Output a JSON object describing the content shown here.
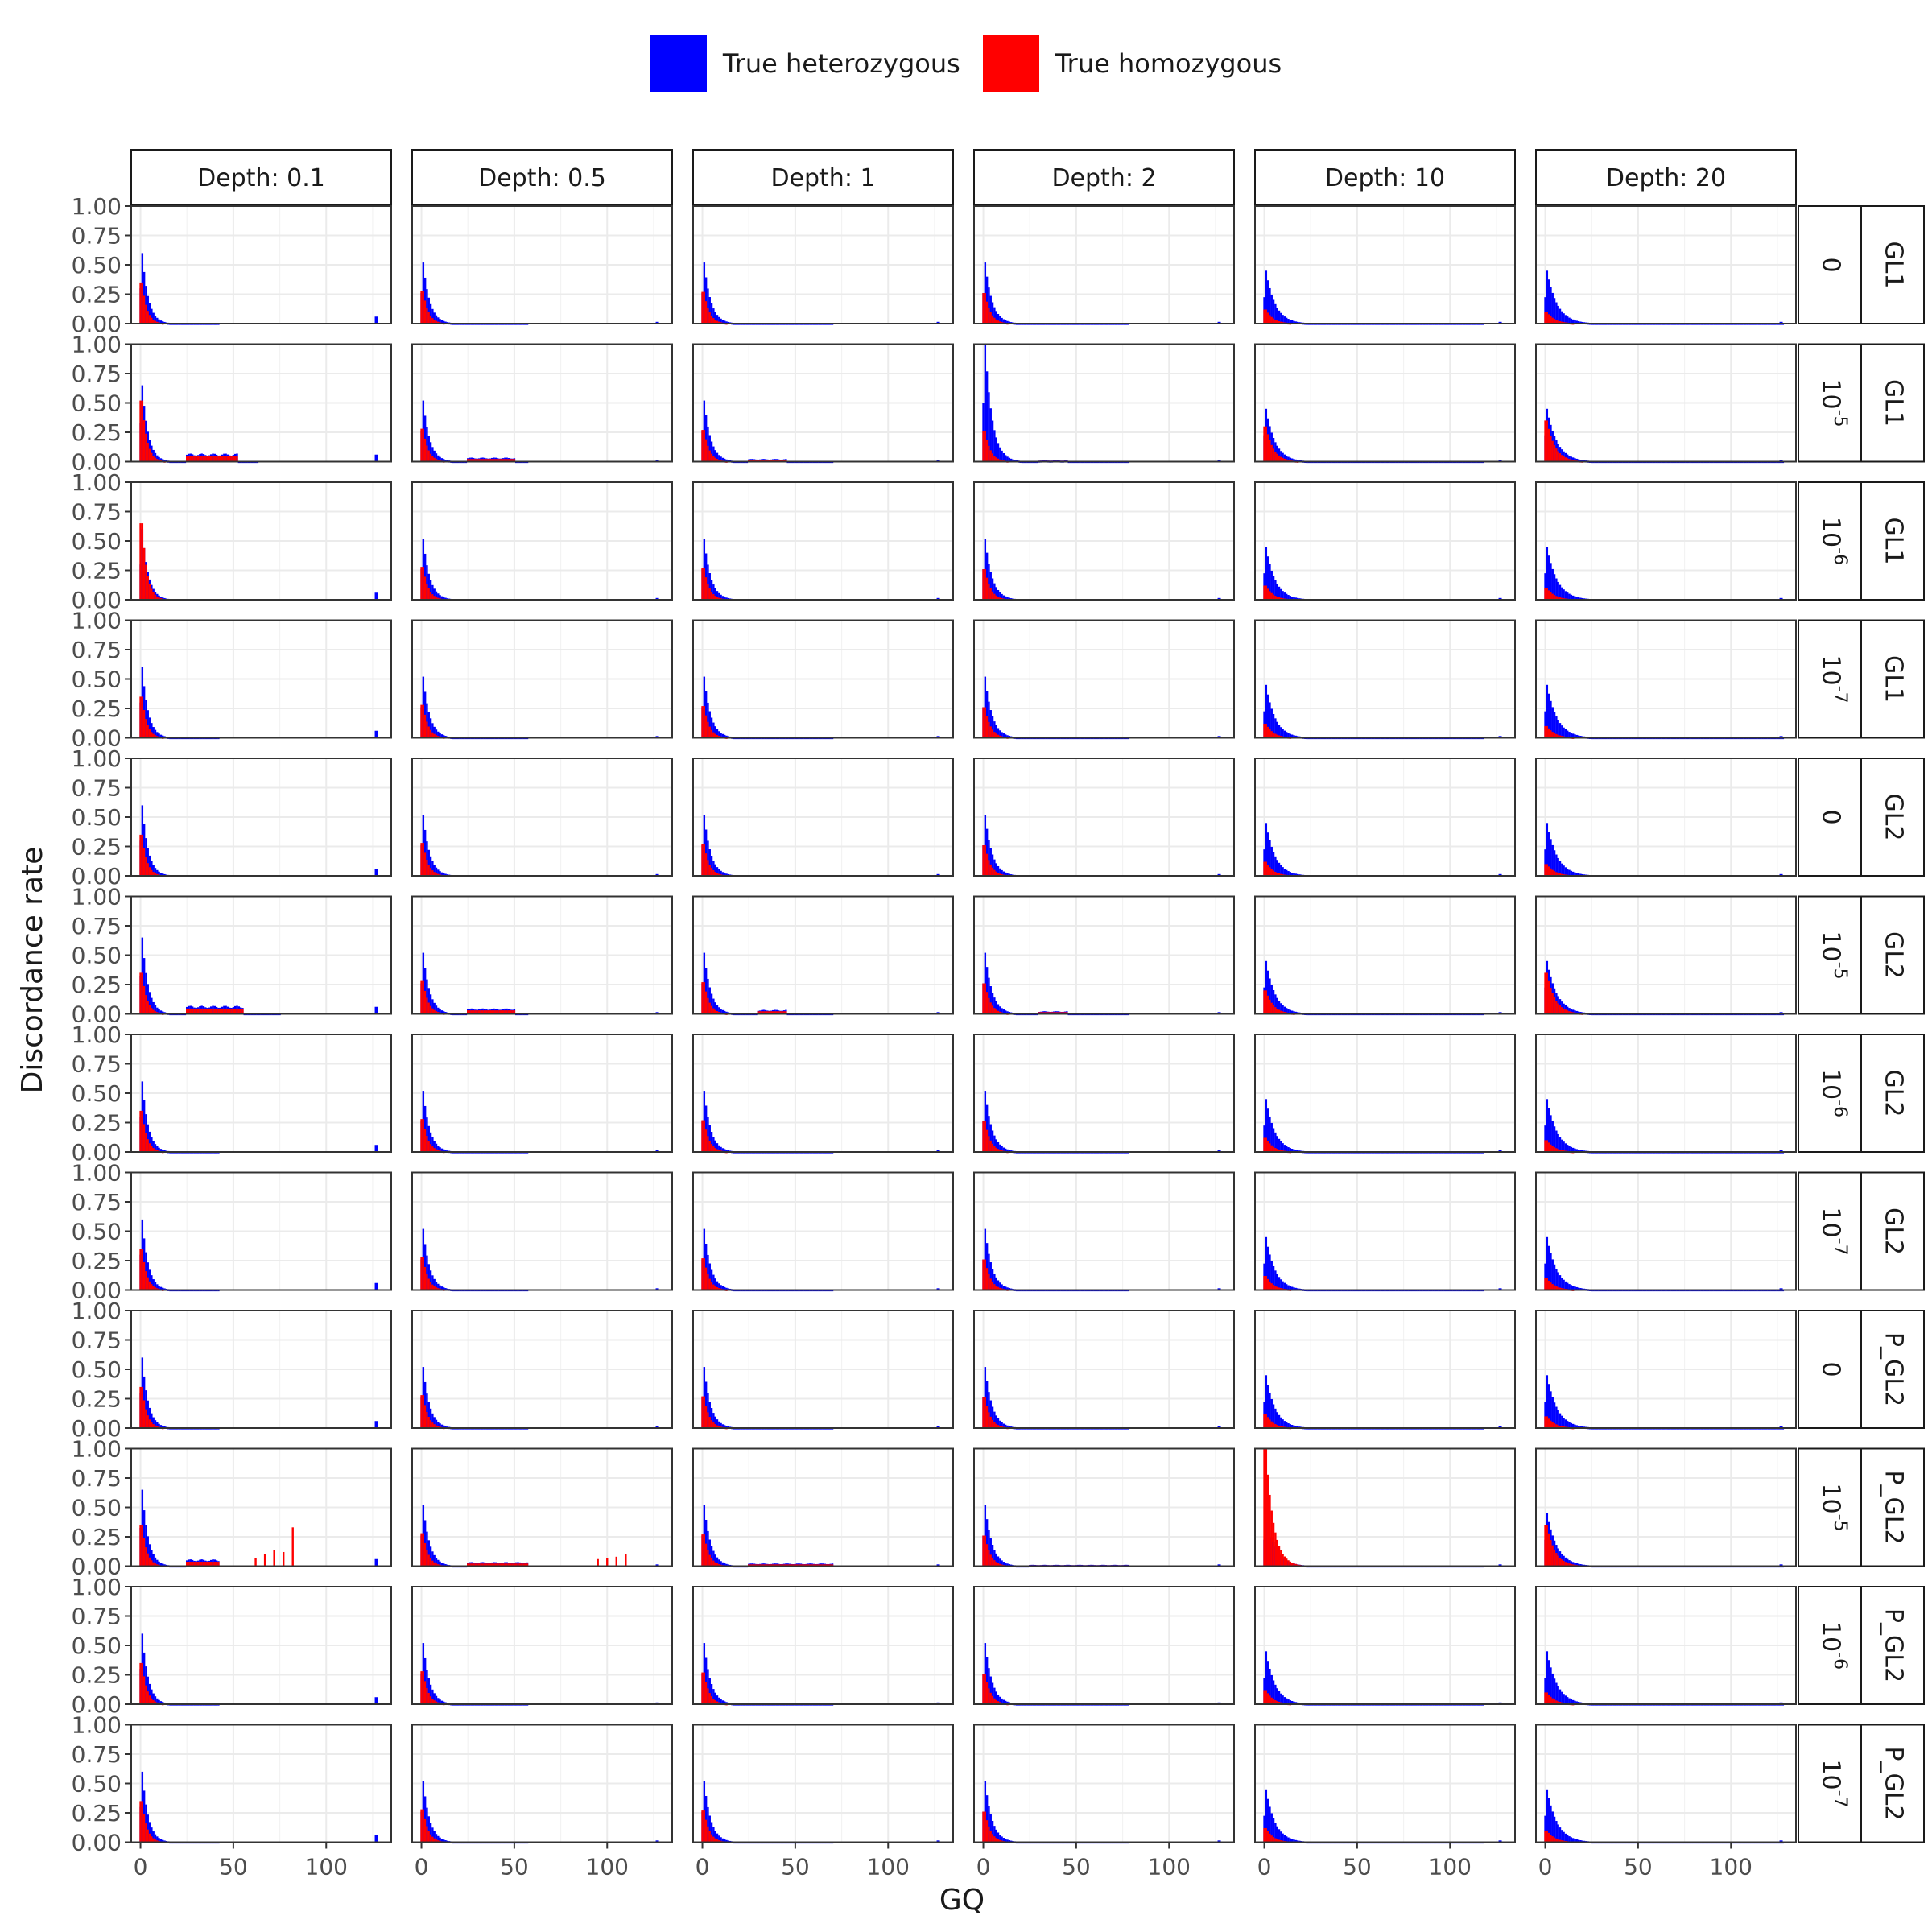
{
  "legend": {
    "items": [
      {
        "label": "True heterozygous",
        "color": "#0000ff"
      },
      {
        "label": "True homozygous",
        "color": "#ff0000"
      }
    ]
  },
  "chart_data": {
    "type": "bar",
    "xlabel": "GQ",
    "ylabel": "Discordance rate",
    "xlim": [
      -5,
      135
    ],
    "ylim": [
      0,
      1
    ],
    "x_ticks": [
      0,
      50,
      100
    ],
    "y_ticks": [
      "0.00",
      "0.25",
      "0.50",
      "0.75",
      "1.00"
    ],
    "grid": true,
    "legend_position": "top",
    "series_colors": {
      "True heterozygous": "#0000ff",
      "True homozygous": "#ff0000"
    },
    "columns": [
      "Depth: 0.1",
      "Depth: 0.5",
      "Depth: 1",
      "Depth: 2",
      "Depth: 10",
      "Depth: 20"
    ],
    "rows": [
      {
        "threshold": "0",
        "exp": "",
        "model": "GL1"
      },
      {
        "threshold": "10",
        "exp": "-5",
        "model": "GL1"
      },
      {
        "threshold": "10",
        "exp": "-6",
        "model": "GL1"
      },
      {
        "threshold": "10",
        "exp": "-7",
        "model": "GL1"
      },
      {
        "threshold": "0",
        "exp": "",
        "model": "GL2"
      },
      {
        "threshold": "10",
        "exp": "-5",
        "model": "GL2"
      },
      {
        "threshold": "10",
        "exp": "-6",
        "model": "GL2"
      },
      {
        "threshold": "10",
        "exp": "-7",
        "model": "GL2"
      },
      {
        "threshold": "0",
        "exp": "",
        "model": "P_GL2"
      },
      {
        "threshold": "10",
        "exp": "-5",
        "model": "P_GL2"
      },
      {
        "threshold": "10",
        "exp": "-6",
        "model": "P_GL2"
      },
      {
        "threshold": "10",
        "exp": "-7",
        "model": "P_GL2"
      }
    ],
    "column_profiles": [
      {
        "het_peak": 0.6,
        "hom_peak": 0.35,
        "decay": 3.2,
        "max_gq": 42
      },
      {
        "het_peak": 0.52,
        "hom_peak": 0.28,
        "decay": 3.5,
        "max_gq": 57
      },
      {
        "het_peak": 0.52,
        "hom_peak": 0.27,
        "decay": 3.6,
        "max_gq": 70
      },
      {
        "het_peak": 0.52,
        "hom_peak": 0.26,
        "decay": 3.8,
        "max_gq": 78
      },
      {
        "het_peak": 0.45,
        "hom_peak": 0.12,
        "decay": 5.0,
        "max_gq": 118
      },
      {
        "het_peak": 0.45,
        "hom_peak": 0.1,
        "decay": 5.5,
        "max_gq": 128
      }
    ],
    "panel_overrides": [
      {
        "row": 1,
        "col": 0,
        "het_peak": 0.65,
        "hom_peak": 0.52,
        "plateau": [
          25,
          52,
          0.06
        ],
        "max_gq": 63
      },
      {
        "row": 1,
        "col": 1,
        "plateau": [
          25,
          50,
          0.03
        ]
      },
      {
        "row": 1,
        "col": 2,
        "plateau": [
          25,
          45,
          0.02
        ]
      },
      {
        "row": 1,
        "col": 3,
        "het_peak": 1.0,
        "plateau": [
          30,
          45,
          0.01
        ]
      },
      {
        "row": 1,
        "col": 4,
        "hom_peak": 0.3
      },
      {
        "row": 1,
        "col": 5,
        "hom_peak": 0.35
      },
      {
        "row": 2,
        "col": 0,
        "hom_peak": 0.65
      },
      {
        "row": 5,
        "col": 0,
        "het_peak": 0.65,
        "plateau": [
          25,
          55,
          0.06
        ],
        "max_gq": 75
      },
      {
        "row": 5,
        "col": 1,
        "plateau": [
          25,
          50,
          0.04
        ]
      },
      {
        "row": 5,
        "col": 2,
        "plateau": [
          30,
          45,
          0.03
        ]
      },
      {
        "row": 5,
        "col": 3,
        "plateau": [
          30,
          45,
          0.02
        ]
      },
      {
        "row": 5,
        "col": 4,
        "hom_peak": 0.2
      },
      {
        "row": 5,
        "col": 5,
        "hom_peak": 0.35
      },
      {
        "row": 9,
        "col": 0,
        "het_peak": 0.65,
        "plateau": [
          25,
          55,
          0.05
        ],
        "spikes": [
          [
            62,
            0.07
          ],
          [
            67,
            0.1
          ],
          [
            72,
            0.14
          ],
          [
            77,
            0.12
          ],
          [
            82,
            0.33
          ]
        ]
      },
      {
        "row": 9,
        "col": 1,
        "plateau": [
          25,
          115,
          0.03
        ],
        "spikes": [
          [
            95,
            0.06
          ],
          [
            100,
            0.07
          ],
          [
            105,
            0.08
          ],
          [
            110,
            0.1
          ]
        ]
      },
      {
        "row": 9,
        "col": 2,
        "plateau": [
          25,
          120,
          0.02
        ]
      },
      {
        "row": 9,
        "col": 3,
        "plateau": [
          25,
          120,
          0.01
        ]
      },
      {
        "row": 9,
        "col": 4,
        "hom_peak": 1.0
      },
      {
        "row": 9,
        "col": 5,
        "hom_peak": 0.35
      }
    ]
  }
}
